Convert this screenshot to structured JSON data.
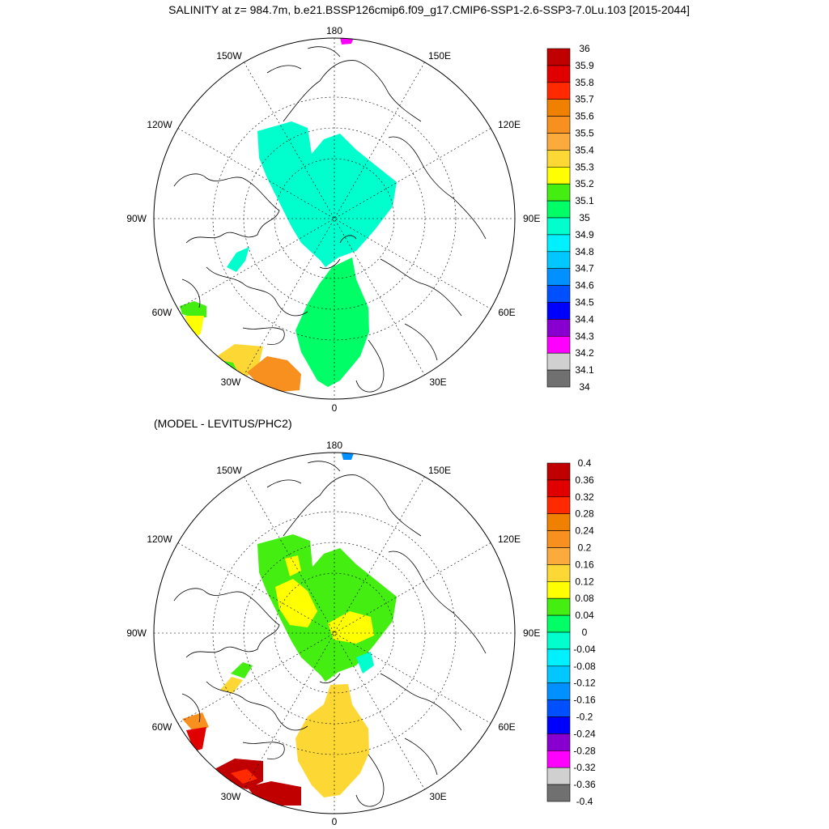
{
  "title": "SALINITY at z= 984.7m, b.e21.BSSP126cmip6.f09_g17.CMIP6-SSP1-2.6-SSP3-7.0Lu.103 [2015-2044]",
  "subtitle": "(MODEL - LEVITUS/PHC2)",
  "longitude_labels": {
    "lon_180": "180",
    "lon_150e": "150E",
    "lon_120e": "120E",
    "lon_90e": "90E",
    "lon_60e": "60E",
    "lon_30e": "30E",
    "lon_0": "0",
    "lon_30w": "30W",
    "lon_60w": "60W",
    "lon_90w": "90W",
    "lon_120w": "120W",
    "lon_150w": "150W"
  },
  "salinity_colorbar": {
    "labels": [
      "36",
      "35.9",
      "35.8",
      "35.7",
      "35.6",
      "35.5",
      "35.4",
      "35.3",
      "35.2",
      "35.1",
      "35",
      "34.9",
      "34.8",
      "34.7",
      "34.6",
      "34.5",
      "34.4",
      "34.3",
      "34.2",
      "34.1",
      "34"
    ],
    "colors": [
      "#c00000",
      "#e00000",
      "#ff2a00",
      "#f08000",
      "#f89020",
      "#fbaa3c",
      "#fdd835",
      "#ffff00",
      "#44ee11",
      "#00ff66",
      "#00ffcc",
      "#00f0ff",
      "#00c8ff",
      "#0090ff",
      "#0050ff",
      "#0000ff",
      "#8800d0",
      "#ff00ff",
      "#d0d0d0",
      "#707070"
    ]
  },
  "difference_colorbar": {
    "labels": [
      "0.4",
      "0.36",
      "0.32",
      "0.28",
      "0.24",
      "0.2",
      "0.16",
      "0.12",
      "0.08",
      "0.04",
      "0",
      "-0.04",
      "-0.08",
      "-0.12",
      "-0.16",
      "-0.2",
      "-0.24",
      "-0.28",
      "-0.32",
      "-0.36",
      "-0.4"
    ],
    "colors": [
      "#c00000",
      "#e00000",
      "#ff2a00",
      "#f08000",
      "#f89020",
      "#fbaa3c",
      "#fdd835",
      "#ffff00",
      "#44ee11",
      "#00ff66",
      "#00ffcc",
      "#00f0ff",
      "#00c8ff",
      "#0090ff",
      "#0050ff",
      "#0000ff",
      "#8800d0",
      "#ff00ff",
      "#d0d0d0",
      "#707070"
    ]
  }
}
